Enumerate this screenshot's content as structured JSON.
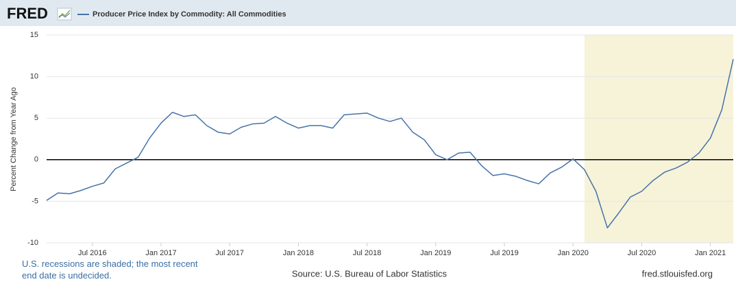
{
  "logo": "FRED",
  "chart_data": {
    "type": "line",
    "y_label": "Percent Change from Year Ago",
    "note": "U.S. recessions are shaded; the most recent end date is undecided.",
    "source": "Source: U.S. Bureau of Labor Statistics",
    "site": "fred.stlouisfed.org",
    "x": [
      "2016-03",
      "2016-04",
      "2016-05",
      "2016-06",
      "2016-07",
      "2016-08",
      "2016-09",
      "2016-10",
      "2016-11",
      "2016-12",
      "2017-01",
      "2017-02",
      "2017-03",
      "2017-04",
      "2017-05",
      "2017-06",
      "2017-07",
      "2017-08",
      "2017-09",
      "2017-10",
      "2017-11",
      "2017-12",
      "2018-01",
      "2018-02",
      "2018-03",
      "2018-04",
      "2018-05",
      "2018-06",
      "2018-07",
      "2018-08",
      "2018-09",
      "2018-10",
      "2018-11",
      "2018-12",
      "2019-01",
      "2019-02",
      "2019-03",
      "2019-04",
      "2019-05",
      "2019-06",
      "2019-07",
      "2019-08",
      "2019-09",
      "2019-10",
      "2019-11",
      "2019-12",
      "2020-01",
      "2020-02",
      "2020-03",
      "2020-04",
      "2020-05",
      "2020-06",
      "2020-07",
      "2020-08",
      "2020-09",
      "2020-10",
      "2020-11",
      "2020-12",
      "2021-01",
      "2021-02",
      "2021-03"
    ],
    "series": [
      {
        "name": "Producer Price Index by Commodity: All Commodities",
        "color": "#4572a7",
        "values": [
          -4.9,
          -4.0,
          -4.1,
          -3.7,
          -3.2,
          -2.8,
          -1.1,
          -0.4,
          0.3,
          2.6,
          4.4,
          5.7,
          5.2,
          5.4,
          4.1,
          3.3,
          3.1,
          3.9,
          4.3,
          4.4,
          5.2,
          4.4,
          3.8,
          4.1,
          4.1,
          3.8,
          5.4,
          5.5,
          5.6,
          5.0,
          4.6,
          5.0,
          3.3,
          2.4,
          0.6,
          0.0,
          0.8,
          0.9,
          -0.7,
          -1.9,
          -1.7,
          -2.0,
          -2.5,
          -2.9,
          -1.6,
          -0.9,
          0.1,
          -1.2,
          -3.8,
          -8.2,
          -6.4,
          -4.5,
          -3.8,
          -2.5,
          -1.5,
          -1.0,
          -0.3,
          0.8,
          2.6,
          6.0,
          12.1
        ]
      }
    ],
    "recession": {
      "start": "2020-02"
    },
    "xlim": [
      "2016-03",
      "2021-03"
    ],
    "xticks": [
      {
        "value": "2016-07",
        "label": "Jul 2016"
      },
      {
        "value": "2017-01",
        "label": "Jan 2017"
      },
      {
        "value": "2017-07",
        "label": "Jul 2017"
      },
      {
        "value": "2018-01",
        "label": "Jan 2018"
      },
      {
        "value": "2018-07",
        "label": "Jul 2018"
      },
      {
        "value": "2019-01",
        "label": "Jan 2019"
      },
      {
        "value": "2019-07",
        "label": "Jul 2019"
      },
      {
        "value": "2020-01",
        "label": "Jan 2020"
      },
      {
        "value": "2020-07",
        "label": "Jul 2020"
      },
      {
        "value": "2021-01",
        "label": "Jan 2021"
      }
    ],
    "ylim": [
      -10,
      15
    ],
    "yticks": [
      15,
      10,
      5,
      0,
      -5,
      -10
    ],
    "grid": true,
    "zero_line": true
  }
}
